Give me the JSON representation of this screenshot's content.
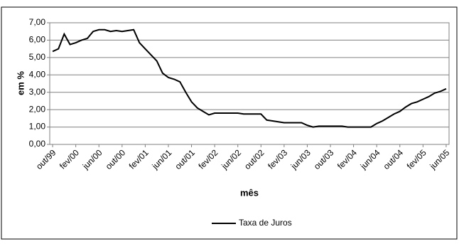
{
  "chart_data": {
    "type": "line",
    "y_label": "em %",
    "x_label": "mês",
    "categories": [
      "out/99",
      null,
      null,
      null,
      "fev/00",
      null,
      null,
      null,
      "jun/00",
      null,
      null,
      null,
      "out/00",
      null,
      null,
      null,
      "fev/01",
      null,
      null,
      null,
      "jun/01",
      null,
      null,
      null,
      "out/01",
      null,
      null,
      null,
      "fev/02",
      null,
      null,
      null,
      "jun/02",
      null,
      null,
      null,
      "out/02",
      null,
      null,
      null,
      "fev/03",
      null,
      null,
      null,
      "jun/03",
      null,
      null,
      null,
      "out/03",
      null,
      null,
      null,
      "fev/04",
      null,
      null,
      null,
      "jun/04",
      null,
      null,
      null,
      "out/04",
      null,
      null,
      null,
      "fev/05",
      null,
      null,
      null,
      "jun/05"
    ],
    "series": [
      {
        "name": "Taxa de Juros",
        "color": "#000000",
        "values": [
          5.35,
          5.5,
          6.35,
          5.75,
          5.85,
          6.0,
          6.1,
          6.5,
          6.6,
          6.6,
          6.5,
          6.55,
          6.5,
          6.55,
          6.6,
          5.85,
          5.5,
          5.15,
          4.8,
          4.1,
          3.85,
          3.75,
          3.6,
          3.0,
          2.45,
          2.1,
          1.9,
          1.7,
          1.8,
          1.8,
          1.8,
          1.8,
          1.8,
          1.75,
          1.75,
          1.75,
          1.75,
          1.4,
          1.35,
          1.3,
          1.25,
          1.25,
          1.25,
          1.25,
          1.1,
          1.0,
          1.05,
          1.05,
          1.05,
          1.05,
          1.05,
          1.0,
          1.0,
          1.0,
          1.0,
          1.0,
          1.2,
          1.35,
          1.55,
          1.75,
          1.9,
          2.15,
          2.35,
          2.45,
          2.6,
          2.75,
          2.95,
          3.05,
          3.2
        ]
      }
    ],
    "ylim": [
      0,
      7
    ],
    "yticks": [
      {
        "value": 0,
        "label": "0,00"
      },
      {
        "value": 1,
        "label": "1,00"
      },
      {
        "value": 2,
        "label": "2,00"
      },
      {
        "value": 3,
        "label": "3,00"
      },
      {
        "value": 4,
        "label": "4,00"
      },
      {
        "value": 5,
        "label": "5,00"
      },
      {
        "value": 6,
        "label": "6,00"
      },
      {
        "value": 7,
        "label": "7,00"
      }
    ],
    "grid": true,
    "legend": "bottom"
  }
}
